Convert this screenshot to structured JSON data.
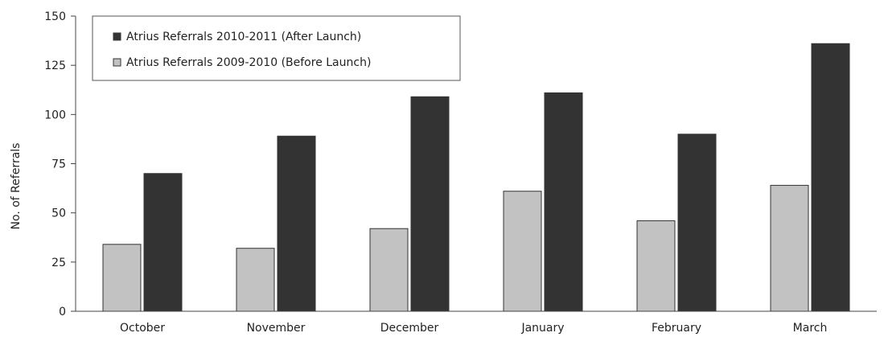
{
  "chart_data": {
    "type": "bar",
    "title": "",
    "xlabel": "",
    "ylabel": "No. of Referrals",
    "categories": [
      "October",
      "November",
      "December",
      "January",
      "February",
      "March"
    ],
    "series": [
      {
        "name": "Atrius Referrals 2009-2010 (Before Launch)",
        "color": "#c2c2c2",
        "values": [
          34,
          32,
          42,
          61,
          46,
          64
        ]
      },
      {
        "name": "Atrius Referrals 2010-2011 (After Launch)",
        "color": "#333333",
        "values": [
          70,
          89,
          109,
          111,
          90,
          136
        ]
      }
    ],
    "ylim": [
      0,
      150
    ],
    "yticks": [
      "0",
      "25",
      "50",
      "75",
      "100",
      "125",
      "150"
    ],
    "legend_position": "top-left",
    "legend_order": [
      1,
      0
    ],
    "grid": false
  }
}
